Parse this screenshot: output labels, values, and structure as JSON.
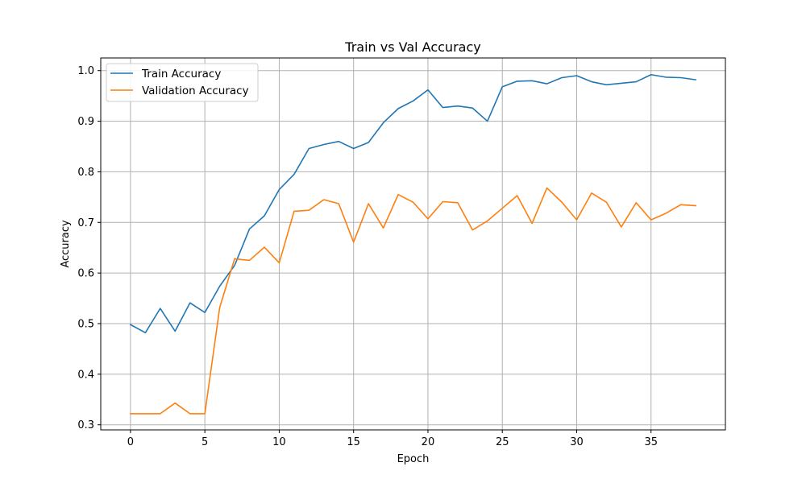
{
  "chart_data": {
    "type": "line",
    "title": "Train vs Val Accuracy",
    "xlabel": "Epoch",
    "ylabel": "Accuracy",
    "xlim": [
      -2.0,
      40.0
    ],
    "ylim": [
      0.29,
      1.025
    ],
    "xticks": [
      0,
      5,
      10,
      15,
      20,
      25,
      30,
      35
    ],
    "yticks": [
      0.3,
      0.4,
      0.5,
      0.6,
      0.7,
      0.8,
      0.9,
      1.0
    ],
    "grid": true,
    "legend_position": "top-left",
    "x": [
      0,
      1,
      2,
      3,
      4,
      5,
      6,
      7,
      8,
      9,
      10,
      11,
      12,
      13,
      14,
      15,
      16,
      17,
      18,
      19,
      20,
      21,
      22,
      23,
      24,
      25,
      26,
      27,
      28,
      29,
      30,
      31,
      32,
      33,
      34,
      35,
      36,
      37,
      38
    ],
    "series": [
      {
        "name": "Train Accuracy",
        "color": "#1f77b4",
        "values": [
          0.498,
          0.482,
          0.53,
          0.485,
          0.541,
          0.522,
          0.574,
          0.615,
          0.687,
          0.713,
          0.765,
          0.795,
          0.846,
          0.854,
          0.86,
          0.846,
          0.858,
          0.897,
          0.925,
          0.94,
          0.962,
          0.927,
          0.93,
          0.926,
          0.9,
          0.968,
          0.979,
          0.98,
          0.974,
          0.986,
          0.99,
          0.978,
          0.972,
          0.975,
          0.978,
          0.992,
          0.987,
          0.986,
          0.982
        ]
      },
      {
        "name": "Validation Accuracy",
        "color": "#ff7f0e",
        "values": [
          0.322,
          0.322,
          0.322,
          0.343,
          0.322,
          0.322,
          0.532,
          0.628,
          0.625,
          0.651,
          0.62,
          0.722,
          0.724,
          0.745,
          0.737,
          0.661,
          0.737,
          0.689,
          0.755,
          0.74,
          0.707,
          0.741,
          0.739,
          0.685,
          0.703,
          0.728,
          0.753,
          0.698,
          0.768,
          0.74,
          0.705,
          0.758,
          0.74,
          0.691,
          0.739,
          0.705,
          0.718,
          0.735,
          0.733
        ]
      }
    ]
  }
}
